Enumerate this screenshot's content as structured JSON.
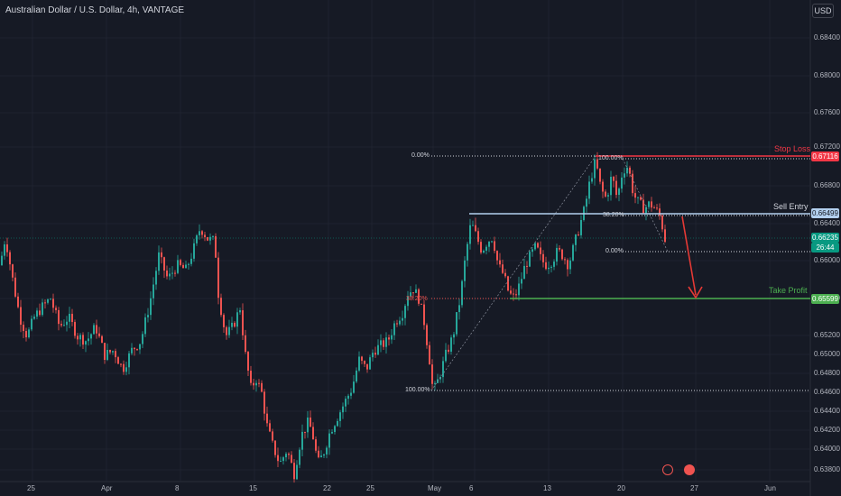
{
  "chart_title": "Australian Dollar / U.S. Dollar, 4h, VANTAGE",
  "currency_button": "USD",
  "colors": {
    "background": "#161a25",
    "grid": "#1f2330",
    "candle_up": "#26a69a",
    "candle_down": "#ef5350",
    "stop_loss": "#f23645",
    "sell_entry": "#b2cfee",
    "take_profit": "#4caf50",
    "arrow": "#e53935"
  },
  "chart_data": {
    "type": "candlestick",
    "ylim": [
      0.637,
      0.685
    ],
    "y_ticks": [
      "0.68400",
      "0.68000",
      "0.67600",
      "0.67200",
      "0.66800",
      "0.66400",
      "0.66000",
      "0.65600",
      "0.65200",
      "0.65000",
      "0.64800",
      "0.64600",
      "0.64400",
      "0.64200",
      "0.64000",
      "0.63800"
    ],
    "x_ticks": [
      "25",
      "Apr",
      "8",
      "15",
      "22",
      "25",
      "May",
      "6",
      "13",
      "20",
      "27",
      "Jun"
    ],
    "price_path": [
      [
        0,
        0.66
      ],
      [
        6,
        0.663
      ],
      [
        14,
        0.6585
      ],
      [
        22,
        0.6545
      ],
      [
        30,
        0.6525
      ],
      [
        38,
        0.6545
      ],
      [
        46,
        0.6555
      ],
      [
        56,
        0.6565
      ],
      [
        66,
        0.6535
      ],
      [
        76,
        0.6545
      ],
      [
        86,
        0.6525
      ],
      [
        96,
        0.652
      ],
      [
        106,
        0.6535
      ],
      [
        116,
        0.6505
      ],
      [
        126,
        0.651
      ],
      [
        136,
        0.649
      ],
      [
        146,
        0.651
      ],
      [
        156,
        0.652
      ],
      [
        166,
        0.656
      ],
      [
        176,
        0.661
      ],
      [
        186,
        0.6585
      ],
      [
        196,
        0.66
      ],
      [
        206,
        0.6595
      ],
      [
        214,
        0.6615
      ],
      [
        222,
        0.664
      ],
      [
        230,
        0.6628
      ],
      [
        238,
        0.6625
      ],
      [
        242,
        0.657
      ],
      [
        250,
        0.6525
      ],
      [
        258,
        0.6535
      ],
      [
        266,
        0.6555
      ],
      [
        272,
        0.6505
      ],
      [
        278,
        0.647
      ],
      [
        284,
        0.648
      ],
      [
        290,
        0.6465
      ],
      [
        296,
        0.643
      ],
      [
        302,
        0.641
      ],
      [
        310,
        0.639
      ],
      [
        318,
        0.6405
      ],
      [
        326,
        0.638
      ],
      [
        334,
        0.642
      ],
      [
        342,
        0.6435
      ],
      [
        348,
        0.6415
      ],
      [
        352,
        0.639
      ],
      [
        358,
        0.64
      ],
      [
        366,
        0.6425
      ],
      [
        374,
        0.644
      ],
      [
        382,
        0.6455
      ],
      [
        390,
        0.647
      ],
      [
        398,
        0.65
      ],
      [
        406,
        0.649
      ],
      [
        414,
        0.651
      ],
      [
        422,
        0.6515
      ],
      [
        430,
        0.652
      ],
      [
        438,
        0.654
      ],
      [
        446,
        0.655
      ],
      [
        452,
        0.657
      ],
      [
        458,
        0.6575
      ],
      [
        464,
        0.6565
      ],
      [
        470,
        0.654
      ],
      [
        476,
        0.65
      ],
      [
        480,
        0.6465
      ],
      [
        486,
        0.648
      ],
      [
        494,
        0.6505
      ],
      [
        502,
        0.6525
      ],
      [
        510,
        0.6565
      ],
      [
        516,
        0.661
      ],
      [
        522,
        0.6645
      ],
      [
        528,
        0.663
      ],
      [
        534,
        0.6615
      ],
      [
        540,
        0.6625
      ],
      [
        546,
        0.663
      ],
      [
        552,
        0.66
      ],
      [
        558,
        0.659
      ],
      [
        564,
        0.657
      ],
      [
        570,
        0.6565
      ],
      [
        576,
        0.658
      ],
      [
        582,
        0.66
      ],
      [
        588,
        0.661
      ],
      [
        594,
        0.662
      ],
      [
        600,
        0.6605
      ],
      [
        606,
        0.66
      ],
      [
        612,
        0.6605
      ],
      [
        618,
        0.6615
      ],
      [
        624,
        0.661
      ],
      [
        630,
        0.66
      ],
      [
        636,
        0.662
      ],
      [
        642,
        0.664
      ],
      [
        648,
        0.666
      ],
      [
        654,
        0.669
      ],
      [
        660,
        0.671
      ],
      [
        666,
        0.668
      ],
      [
        672,
        0.667
      ],
      [
        678,
        0.6695
      ],
      [
        684,
        0.667
      ],
      [
        690,
        0.67
      ],
      [
        696,
        0.6705
      ],
      [
        702,
        0.6675
      ],
      [
        708,
        0.6665
      ],
      [
        714,
        0.666
      ],
      [
        720,
        0.6665
      ],
      [
        726,
        0.666
      ],
      [
        732,
        0.665
      ],
      [
        738,
        0.6623
      ]
    ],
    "levels": [
      {
        "label": "Stop Loss",
        "price_tag": "0.67116"
      },
      {
        "label": "Sell Entry",
        "price_tag": "0.66499"
      },
      {
        "label": "Take Profit",
        "price_tag": "0.65599"
      }
    ],
    "current_price": "0.66235",
    "countdown": "26:44",
    "fib_labels_left": [
      "0.00%",
      "38.20%",
      "100.00%"
    ],
    "fib_labels_right": [
      "100.00%",
      "38.20%",
      "0.00%"
    ]
  }
}
